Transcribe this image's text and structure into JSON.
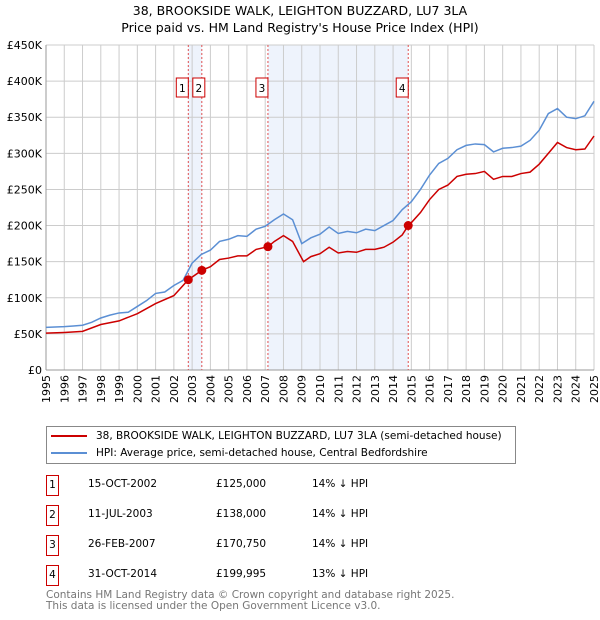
{
  "chart_data": {
    "type": "line",
    "title": "38, BROOKSIDE WALK, LEIGHTON BUZZARD, LU7 3LA",
    "subtitle": "Price paid vs. HM Land Registry's House Price Index (HPI)",
    "xlim": [
      1995,
      2025
    ],
    "ylim": [
      0,
      450000
    ],
    "x_ticks": [
      "1995",
      "1996",
      "1997",
      "1998",
      "1999",
      "2000",
      "2001",
      "2002",
      "2003",
      "2004",
      "2005",
      "2006",
      "2007",
      "2008",
      "2009",
      "2010",
      "2011",
      "2012",
      "2013",
      "2014",
      "2015",
      "2016",
      "2017",
      "2018",
      "2019",
      "2020",
      "2021",
      "2022",
      "2023",
      "2024",
      "2025"
    ],
    "y_ticks": [
      {
        "v": 0,
        "label": "£0"
      },
      {
        "v": 50000,
        "label": "£50K"
      },
      {
        "v": 100000,
        "label": "£100K"
      },
      {
        "v": 150000,
        "label": "£150K"
      },
      {
        "v": 200000,
        "label": "£200K"
      },
      {
        "v": 250000,
        "label": "£250K"
      },
      {
        "v": 300000,
        "label": "£300K"
      },
      {
        "v": 350000,
        "label": "£350K"
      },
      {
        "v": 400000,
        "label": "£400K"
      },
      {
        "v": 450000,
        "label": "£450K"
      }
    ],
    "grid": true,
    "series": [
      {
        "name": "38, BROOKSIDE WALK, LEIGHTON BUZZARD, LU7 3LA (semi-detached house)",
        "color": "#cc0000",
        "x": [
          1995,
          1996,
          1997,
          1998,
          1999,
          2000,
          2001,
          2002,
          2002.79,
          2003.53,
          2004,
          2004.5,
          2005,
          2005.5,
          2006,
          2006.5,
          2007.15,
          2007.5,
          2008,
          2008.5,
          2009.1,
          2009.5,
          2010,
          2010.5,
          2011,
          2011.5,
          2012,
          2012.5,
          2013,
          2013.5,
          2014,
          2014.5,
          2014.83,
          2015,
          2015.5,
          2016,
          2016.5,
          2017,
          2017.5,
          2018,
          2018.5,
          2019,
          2019.5,
          2020,
          2020.5,
          2021,
          2021.5,
          2022,
          2022.5,
          2023,
          2023.5,
          2024,
          2024.5,
          2025
        ],
        "y": [
          51000,
          52000,
          53500,
          63000,
          68000,
          78000,
          92000,
          103000,
          125000,
          138000,
          143000,
          153000,
          155000,
          158000,
          158000,
          167000,
          170750,
          178000,
          186000,
          178000,
          150000,
          157000,
          161000,
          170000,
          162000,
          164000,
          163000,
          167000,
          167000,
          170000,
          177000,
          187000,
          199995,
          204000,
          218000,
          236000,
          250000,
          256000,
          268000,
          271000,
          272000,
          275000,
          264000,
          268000,
          268000,
          272000,
          274000,
          285000,
          300000,
          315000,
          308000,
          305000,
          306000,
          324000
        ]
      },
      {
        "name": "HPI: Average price, semi-detached house, Central Bedfordshire",
        "color": "#5b8fd4",
        "x": [
          1995,
          1996,
          1996.5,
          1997,
          1997.5,
          1998,
          1998.5,
          1999,
          1999.5,
          2000,
          2000.5,
          2001,
          2001.5,
          2002,
          2002.5,
          2003,
          2003.5,
          2004,
          2004.5,
          2005,
          2005.5,
          2006,
          2006.5,
          2007,
          2007.5,
          2008,
          2008.5,
          2009,
          2009.5,
          2010,
          2010.5,
          2011,
          2011.5,
          2012,
          2012.5,
          2013,
          2013.5,
          2014,
          2014.5,
          2015,
          2015.5,
          2016,
          2016.5,
          2017,
          2017.5,
          2018,
          2018.5,
          2019,
          2019.5,
          2020,
          2020.5,
          2021,
          2021.5,
          2022,
          2022.5,
          2023,
          2023.5,
          2024,
          2024.5,
          2025
        ],
        "y": [
          59000,
          60000,
          61000,
          62000,
          66000,
          72000,
          76000,
          79000,
          80000,
          88000,
          96000,
          106000,
          108000,
          117000,
          124000,
          148000,
          160000,
          166000,
          178000,
          181000,
          186000,
          185000,
          195000,
          199000,
          208000,
          216000,
          208000,
          175000,
          183000,
          188000,
          198000,
          189000,
          192000,
          190000,
          195000,
          193000,
          200000,
          207000,
          222000,
          233000,
          250000,
          270000,
          286000,
          293000,
          305000,
          311000,
          313000,
          312000,
          302000,
          307000,
          308000,
          310000,
          318000,
          332000,
          355000,
          362000,
          350000,
          348000,
          352000,
          372000
        ]
      }
    ],
    "sales": [
      {
        "n": "1",
        "x": 2002.79,
        "price": 125000,
        "date": "15-OCT-2002",
        "price_label": "£125,000",
        "hpi": "14% ↓ HPI"
      },
      {
        "n": "2",
        "x": 2003.53,
        "price": 138000,
        "date": "11-JUL-2003",
        "price_label": "£138,000",
        "hpi": "14% ↓ HPI"
      },
      {
        "n": "3",
        "x": 2007.15,
        "price": 170750,
        "date": "26-FEB-2007",
        "price_label": "£170,750",
        "hpi": "14% ↓ HPI"
      },
      {
        "n": "4",
        "x": 2014.83,
        "price": 199995,
        "date": "31-OCT-2014",
        "price_label": "£199,995",
        "hpi": "13% ↓ HPI"
      }
    ],
    "shaded": [
      [
        2002.79,
        2003.53
      ],
      [
        2007.15,
        2014.83
      ]
    ],
    "legend_position": "below"
  },
  "footer": {
    "line1": "Contains HM Land Registry data © Crown copyright and database right 2025.",
    "line2": "This data is licensed under the Open Government Licence v3.0."
  }
}
